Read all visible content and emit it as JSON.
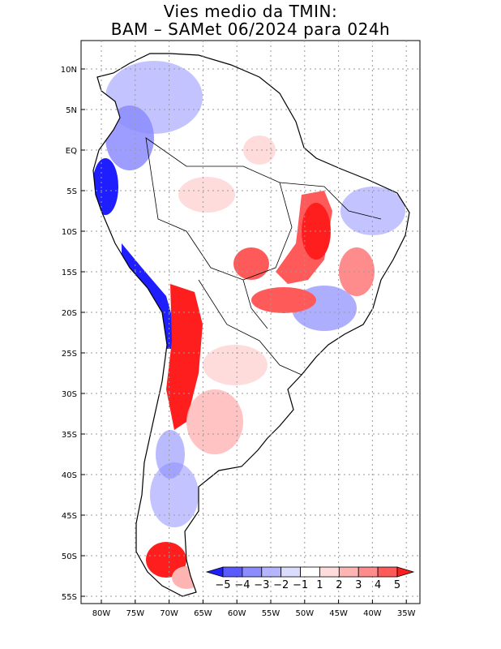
{
  "title": {
    "line1": "Vies medio da TMIN:",
    "line2": "BAM – SAMet 06/2024  para 024h"
  },
  "axes": {
    "y_labels": [
      "10N",
      "5N",
      "EQ",
      "5S",
      "10S",
      "15S",
      "20S",
      "25S",
      "30S",
      "35S",
      "40S",
      "45S",
      "50S",
      "55S"
    ],
    "x_labels": [
      "80W",
      "75W",
      "70W",
      "65W",
      "60W",
      "55W",
      "50W",
      "45W",
      "40W",
      "35W"
    ]
  },
  "colorbar": {
    "labels": [
      "−5",
      "−4",
      "−3",
      "−2",
      "−1",
      "1",
      "2",
      "3",
      "4",
      "5"
    ],
    "colors": [
      "#1e1eff",
      "#5a5aff",
      "#8c8cff",
      "#b4b4ff",
      "#dcdcff",
      "#ffffff",
      "#ffdcdc",
      "#ffb4b4",
      "#ff8c8c",
      "#ff5a5a",
      "#ff1e1e"
    ]
  },
  "colors": {
    "land_neutral": "#ffffff",
    "grid": "#9a9a9a",
    "coast": "#000000"
  }
}
